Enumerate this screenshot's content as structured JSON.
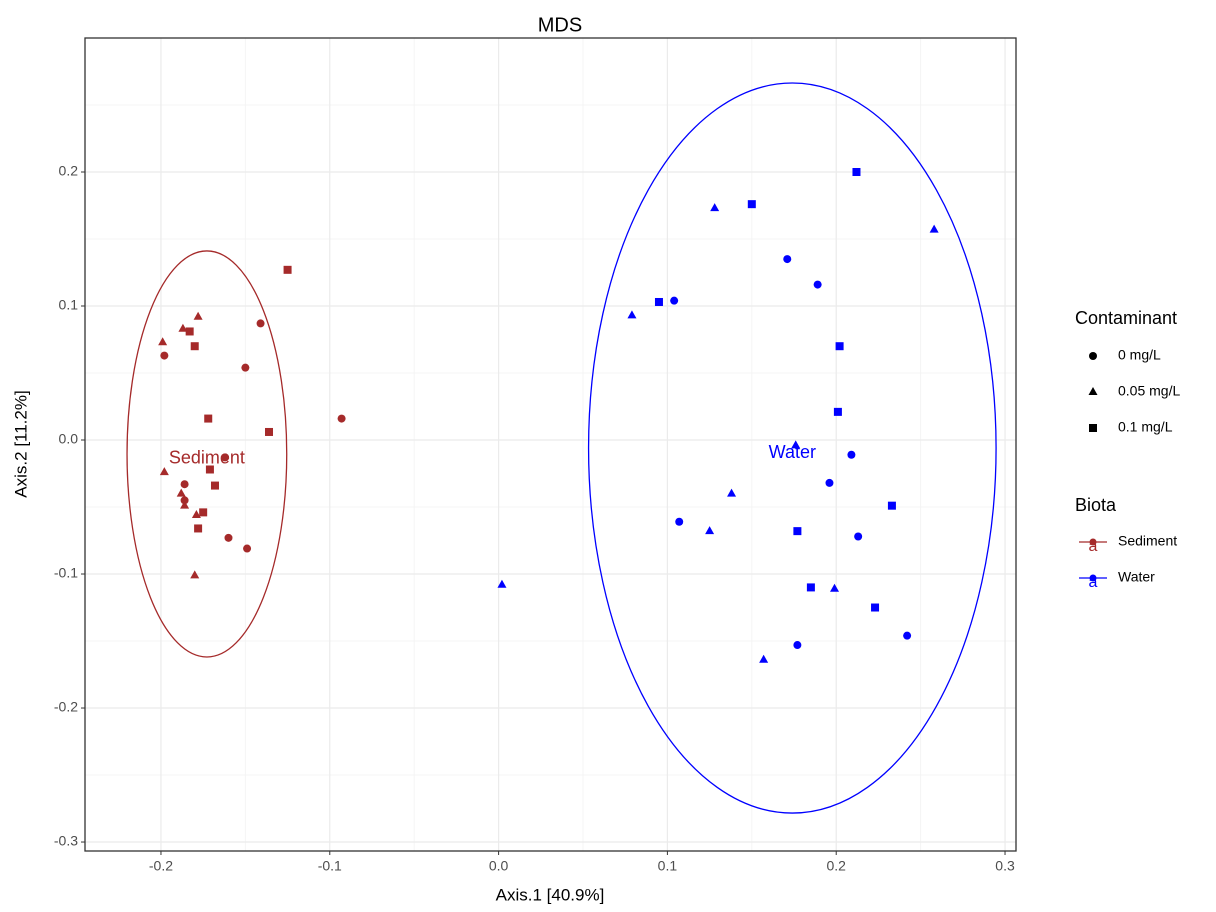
{
  "chart_data": {
    "type": "scatter",
    "title": "MDS",
    "x_label": "Axis.1   [40.9%]",
    "y_label": "Axis.2   [11.2%]",
    "xlim": [
      -0.245,
      0.3065
    ],
    "ylim": [
      -0.3067,
      0.3
    ],
    "xticks": [
      -0.2,
      -0.1,
      {
        "value": 0,
        "label": "0.0"
      },
      0.1,
      0.2,
      0.3
    ],
    "yticks": [
      -0.3,
      -0.2,
      -0.1,
      {
        "value": 0,
        "label": "0.0"
      },
      0.1,
      0.2
    ],
    "grid": true,
    "shape_legend": {
      "title": "Contaminant",
      "labels": [
        "0 mg/L",
        "0.05 mg/L",
        "0.1 mg/L"
      ],
      "shapes": [
        "circle",
        "triangle",
        "square"
      ]
    },
    "color_legend": {
      "title": "Biota",
      "key_text": "a"
    },
    "series": [
      {
        "name": "Sediment",
        "color": "#a52a2a",
        "ellipse": {
          "cx": -0.1728,
          "cy": -0.0104,
          "rx": 0.0473,
          "ry": 0.1515
        },
        "groups": [
          {
            "x": [
              -0.198,
              -0.141,
              -0.15,
              -0.093,
              -0.162,
              -0.186,
              -0.186,
              -0.16,
              -0.149
            ],
            "values": [
              0.063,
              0.087,
              0.054,
              0.016,
              -0.013,
              -0.033,
              -0.045,
              -0.073,
              -0.081
            ]
          },
          {
            "x": [
              -0.199,
              -0.187,
              -0.178,
              -0.198,
              -0.188,
              -0.186,
              -0.179,
              -0.18
            ],
            "values": [
              0.073,
              0.083,
              0.092,
              -0.024,
              -0.04,
              -0.049,
              -0.056,
              -0.101
            ]
          },
          {
            "x": [
              -0.125,
              -0.183,
              -0.18,
              -0.172,
              -0.136,
              -0.171,
              -0.168,
              -0.175,
              -0.178
            ],
            "values": [
              0.127,
              0.081,
              0.07,
              0.016,
              0.006,
              -0.022,
              -0.034,
              -0.054,
              -0.066
            ]
          }
        ]
      },
      {
        "name": "Water",
        "color": "#0000ff",
        "ellipse": {
          "cx": 0.174,
          "cy": -0.006,
          "rx": 0.1207,
          "ry": 0.2724
        },
        "groups": [
          {
            "x": [
              0.171,
              0.189,
              0.104,
              0.209,
              0.196,
              0.107,
              0.213,
              0.177,
              0.242
            ],
            "values": [
              0.135,
              0.116,
              0.104,
              -0.011,
              -0.032,
              -0.061,
              -0.072,
              -0.153,
              -0.146
            ]
          },
          {
            "x": [
              0.128,
              0.258,
              0.079,
              0.176,
              0.138,
              0.125,
              0.199,
              0.157,
              0.002
            ],
            "values": [
              0.173,
              0.157,
              0.093,
              -0.004,
              -0.04,
              -0.068,
              -0.111,
              -0.164,
              -0.108
            ]
          },
          {
            "x": [
              0.212,
              0.15,
              0.095,
              0.202,
              0.201,
              0.233,
              0.177,
              0.185,
              0.223
            ],
            "values": [
              0.2,
              0.176,
              0.103,
              0.07,
              0.021,
              -0.049,
              -0.068,
              -0.11,
              -0.125
            ]
          }
        ]
      }
    ]
  }
}
